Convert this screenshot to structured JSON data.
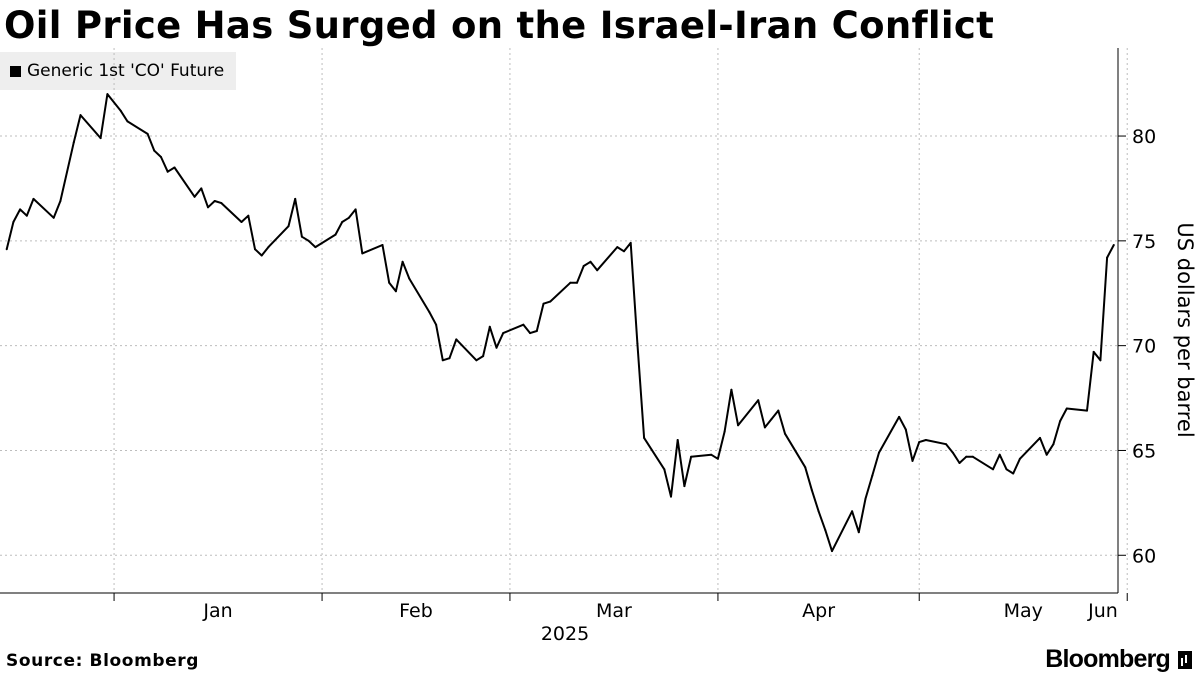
{
  "title": "Oil Price Has Surged on the Israel-Iran Conflict",
  "source_label": "Source: Bloomberg",
  "brand_name": "Bloomberg",
  "chart_data": {
    "type": "line",
    "title": "Oil Price Has Surged on the Israel-Iran Conflict",
    "ylabel": "US dollars per barrel",
    "xlabel": "2025",
    "ylim": [
      58.2,
      84.2
    ],
    "yticks": [
      60,
      65,
      70,
      75,
      80
    ],
    "xticks": [
      {
        "label": "Jan",
        "date": "2025-01-01"
      },
      {
        "label": "Feb",
        "date": "2025-02-01"
      },
      {
        "label": "Mar",
        "date": "2025-03-01"
      },
      {
        "label": "Apr",
        "date": "2025-04-01"
      },
      {
        "label": "May",
        "date": "2025-05-01"
      },
      {
        "label": "Jun",
        "date": "2025-06-01"
      }
    ],
    "grid": true,
    "legend_position": "top-left",
    "line_color": "#000000",
    "series": [
      {
        "name": "Generic 1st 'CO' Future",
        "points": [
          [
            "2024-12-16",
            74.6
          ],
          [
            "2024-12-17",
            75.9
          ],
          [
            "2024-12-18",
            76.5
          ],
          [
            "2024-12-19",
            76.2
          ],
          [
            "2024-12-20",
            77.0
          ],
          [
            "2024-12-23",
            76.1
          ],
          [
            "2024-12-24",
            76.9
          ],
          [
            "2024-12-26",
            79.7
          ],
          [
            "2024-12-27",
            81.0
          ],
          [
            "2024-12-30",
            79.9
          ],
          [
            "2024-12-31",
            82.0
          ],
          [
            "2025-01-02",
            81.2
          ],
          [
            "2025-01-03",
            80.7
          ],
          [
            "2025-01-06",
            80.1
          ],
          [
            "2025-01-07",
            79.3
          ],
          [
            "2025-01-08",
            79.0
          ],
          [
            "2025-01-09",
            78.3
          ],
          [
            "2025-01-10",
            78.5
          ],
          [
            "2025-01-13",
            77.1
          ],
          [
            "2025-01-14",
            77.5
          ],
          [
            "2025-01-15",
            76.6
          ],
          [
            "2025-01-16",
            76.9
          ],
          [
            "2025-01-17",
            76.8
          ],
          [
            "2025-01-20",
            75.9
          ],
          [
            "2025-01-21",
            76.2
          ],
          [
            "2025-01-22",
            74.6
          ],
          [
            "2025-01-23",
            74.3
          ],
          [
            "2025-01-24",
            74.7
          ],
          [
            "2025-01-27",
            75.7
          ],
          [
            "2025-01-28",
            77.0
          ],
          [
            "2025-01-29",
            75.2
          ],
          [
            "2025-01-30",
            75.0
          ],
          [
            "2025-01-31",
            74.7
          ],
          [
            "2025-02-03",
            75.3
          ],
          [
            "2025-02-04",
            75.9
          ],
          [
            "2025-02-05",
            76.1
          ],
          [
            "2025-02-06",
            76.5
          ],
          [
            "2025-02-07",
            74.4
          ],
          [
            "2025-02-10",
            74.8
          ],
          [
            "2025-02-11",
            73.0
          ],
          [
            "2025-02-12",
            72.6
          ],
          [
            "2025-02-13",
            74.0
          ],
          [
            "2025-02-14",
            73.2
          ],
          [
            "2025-02-17",
            71.6
          ],
          [
            "2025-02-18",
            71.0
          ],
          [
            "2025-02-19",
            69.3
          ],
          [
            "2025-02-20",
            69.4
          ],
          [
            "2025-02-21",
            70.3
          ],
          [
            "2025-02-24",
            69.3
          ],
          [
            "2025-02-25",
            69.5
          ],
          [
            "2025-02-26",
            70.9
          ],
          [
            "2025-02-27",
            69.9
          ],
          [
            "2025-02-28",
            70.6
          ],
          [
            "2025-03-03",
            71.0
          ],
          [
            "2025-03-04",
            70.6
          ],
          [
            "2025-03-05",
            70.7
          ],
          [
            "2025-03-06",
            72.0
          ],
          [
            "2025-03-07",
            72.1
          ],
          [
            "2025-03-10",
            73.0
          ],
          [
            "2025-03-11",
            73.0
          ],
          [
            "2025-03-12",
            73.8
          ],
          [
            "2025-03-13",
            74.0
          ],
          [
            "2025-03-14",
            73.6
          ],
          [
            "2025-03-17",
            74.7
          ],
          [
            "2025-03-18",
            74.5
          ],
          [
            "2025-03-19",
            74.9
          ],
          [
            "2025-03-20",
            70.1
          ],
          [
            "2025-03-21",
            65.6
          ],
          [
            "2025-03-24",
            64.1
          ],
          [
            "2025-03-25",
            62.8
          ],
          [
            "2025-03-26",
            65.5
          ],
          [
            "2025-03-27",
            63.3
          ],
          [
            "2025-03-28",
            64.7
          ],
          [
            "2025-03-31",
            64.8
          ],
          [
            "2025-04-01",
            64.6
          ],
          [
            "2025-04-02",
            65.9
          ],
          [
            "2025-04-03",
            67.9
          ],
          [
            "2025-04-04",
            66.2
          ],
          [
            "2025-04-07",
            67.4
          ],
          [
            "2025-04-08",
            66.1
          ],
          [
            "2025-04-09",
            66.5
          ],
          [
            "2025-04-10",
            66.9
          ],
          [
            "2025-04-11",
            65.8
          ],
          [
            "2025-04-14",
            64.2
          ],
          [
            "2025-04-15",
            63.1
          ],
          [
            "2025-04-16",
            62.1
          ],
          [
            "2025-04-17",
            61.2
          ],
          [
            "2025-04-18",
            60.2
          ],
          [
            "2025-04-21",
            62.1
          ],
          [
            "2025-04-22",
            61.1
          ],
          [
            "2025-04-23",
            62.7
          ],
          [
            "2025-04-24",
            63.8
          ],
          [
            "2025-04-25",
            64.9
          ],
          [
            "2025-04-28",
            66.6
          ],
          [
            "2025-04-29",
            66.0
          ],
          [
            "2025-04-30",
            64.5
          ],
          [
            "2025-05-01",
            65.4
          ],
          [
            "2025-05-02",
            65.5
          ],
          [
            "2025-05-05",
            65.3
          ],
          [
            "2025-05-06",
            64.9
          ],
          [
            "2025-05-07",
            64.4
          ],
          [
            "2025-05-08",
            64.7
          ],
          [
            "2025-05-09",
            64.7
          ],
          [
            "2025-05-12",
            64.1
          ],
          [
            "2025-05-13",
            64.8
          ],
          [
            "2025-05-14",
            64.1
          ],
          [
            "2025-05-15",
            63.9
          ],
          [
            "2025-05-16",
            64.6
          ],
          [
            "2025-05-19",
            65.6
          ],
          [
            "2025-05-20",
            64.8
          ],
          [
            "2025-05-21",
            65.3
          ],
          [
            "2025-05-22",
            66.4
          ],
          [
            "2025-05-23",
            67.0
          ],
          [
            "2025-05-26",
            66.9
          ],
          [
            "2025-05-27",
            69.7
          ],
          [
            "2025-05-28",
            69.3
          ],
          [
            "2025-05-29",
            74.2
          ],
          [
            "2025-05-30",
            74.8
          ]
        ]
      }
    ]
  }
}
